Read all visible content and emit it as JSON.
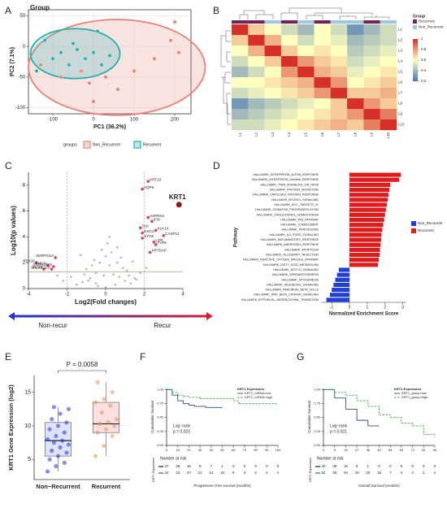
{
  "chart_data": [
    {
      "type": "scatter",
      "panel": "A",
      "title": "Group",
      "xlabel": "PC1 (36.2%)",
      "ylabel": "PC2 (7.1%)",
      "xlim": [
        -160,
        240
      ],
      "ylim": [
        -110,
        60
      ],
      "xticks": [
        -100,
        0,
        100,
        200
      ],
      "yticks": [
        -100,
        -50,
        0,
        50
      ],
      "grid": true,
      "legend_title": "groups",
      "series": [
        {
          "name": "Non_Recurrent",
          "color": "#e8837a",
          "x": [
            -30,
            -10,
            30,
            60,
            100,
            150,
            190,
            200,
            210,
            0,
            -80,
            -130
          ],
          "values": [
            -40,
            -60,
            -50,
            -70,
            -40,
            -20,
            10,
            40,
            -10,
            -90,
            -50,
            -30
          ]
        },
        {
          "name": "Recurrent",
          "color": "#20b2b2",
          "x": [
            -120,
            -100,
            -80,
            -60,
            -40,
            -20,
            0,
            20,
            40,
            -50,
            10,
            -140
          ],
          "values": [
            10,
            -20,
            -10,
            -30,
            -5,
            -20,
            -10,
            -30,
            -15,
            5,
            25,
            -40
          ]
        }
      ]
    },
    {
      "type": "heatmap",
      "panel": "B",
      "legend_title": "Group",
      "labels": [
        "L1",
        "L2",
        "L3",
        "L4",
        "L5",
        "L6",
        "L7",
        "L8",
        "L9",
        "L10"
      ],
      "matrix": [
        [
          1,
          0.7,
          0.6,
          0.5,
          0.4,
          0.6,
          0.5,
          0.3,
          0.4,
          0.5
        ],
        [
          0.7,
          1,
          0.75,
          0.6,
          0.5,
          0.6,
          0.55,
          0.4,
          0.45,
          0.5
        ],
        [
          0.6,
          0.75,
          1,
          0.7,
          0.6,
          0.65,
          0.6,
          0.45,
          0.5,
          0.55
        ],
        [
          0.5,
          0.6,
          0.7,
          1,
          0.8,
          0.7,
          0.65,
          0.5,
          0.55,
          0.6
        ],
        [
          0.4,
          0.5,
          0.6,
          0.8,
          1,
          0.75,
          0.7,
          0.55,
          0.6,
          0.65
        ],
        [
          0.6,
          0.6,
          0.65,
          0.7,
          0.75,
          1,
          0.8,
          0.6,
          0.65,
          0.7
        ],
        [
          0.5,
          0.55,
          0.6,
          0.65,
          0.7,
          0.8,
          1,
          0.7,
          0.7,
          0.75
        ],
        [
          0.3,
          0.4,
          0.45,
          0.5,
          0.55,
          0.6,
          0.7,
          1,
          0.8,
          0.7
        ],
        [
          0.4,
          0.45,
          0.5,
          0.55,
          0.6,
          0.65,
          0.7,
          0.8,
          1,
          0.85
        ],
        [
          0.5,
          0.5,
          0.55,
          0.6,
          0.65,
          0.7,
          0.75,
          0.7,
          0.85,
          1
        ]
      ],
      "column_groups": [
        "Recurrent",
        "Recurrent",
        "Non_Recurrent",
        "Recurrent",
        "Non_Recurrent",
        "Recurrent",
        "Non_Recurrent",
        "Non_Recurrent",
        "Recurrent",
        "Non_Recurrent"
      ],
      "series": [
        {
          "name": "Recurrent",
          "color": "#7b1f4e"
        },
        {
          "name": "Non_Recurrent",
          "color": "#9ecae1"
        }
      ],
      "colorscale": [
        "#4575b4",
        "#ffffbf",
        "#d73027"
      ],
      "scale_lim": [
        0.2,
        1
      ],
      "scale_ticks": [
        0.2,
        0.4,
        0.6,
        0.8,
        1
      ]
    },
    {
      "type": "volcano",
      "panel": "C",
      "xlabel": "Log2(Fold changes)",
      "ylabel": "Log10(p values)",
      "xlim": [
        -4,
        4
      ],
      "ylim": [
        0,
        9
      ],
      "xticks": [
        -4,
        -2,
        0,
        2,
        4
      ],
      "yticks": [
        0,
        2,
        4,
        6,
        8
      ],
      "vlines": [
        -2,
        2
      ],
      "hline": 1.3,
      "point_color": "#b5b5b5",
      "gene_color": "#e0405a",
      "highlight": "KRT1",
      "highlight_color": "#8b1a1a",
      "background": {
        "x": [
          -1.2,
          -0.8,
          -0.5,
          -0.3,
          0,
          0.2,
          0.4,
          0.7,
          1.0,
          1.3,
          -1.5,
          -1.0,
          -0.6,
          -0.2,
          0.1,
          0.3,
          0.6,
          0.9,
          1.2,
          1.6,
          -0.4,
          0.5,
          -0.9,
          0.8,
          -1.8,
          1.8,
          -0.1,
          0.2,
          -0.7,
          1.1,
          -2.2,
          2.1,
          -1.3,
          1.4,
          0.0,
          -0.5,
          0.6,
          -1.1,
          1.5,
          -2.5
        ],
        "values": [
          0.5,
          0.8,
          1.2,
          2.0,
          2.5,
          1.8,
          1.1,
          0.9,
          0.6,
          0.4,
          0.3,
          1.5,
          2.2,
          3.0,
          3.5,
          2.8,
          2.0,
          1.6,
          1.0,
          0.7,
          0.2,
          0.3,
          0.6,
          2.4,
          0.9,
          1.2,
          1.0,
          4.0,
          1.8,
          1.4,
          0.6,
          1.6,
          2.6,
          2.1,
          0.1,
          0.4,
          3.2,
          1.1,
          0.8,
          1.0
        ]
      },
      "genes": {
        "names": [
          "KRT10",
          "AQP5",
          "KRT1",
          "ASPRN1",
          "IFI6",
          "SLK",
          "KLK14",
          "DSG1",
          "SYCE",
          "CASP14",
          "LOR",
          "FLR5",
          "KRTDAP",
          "SERPIN1A",
          "TEX26",
          "PMCH",
          "SNORD115",
          "PGA4",
          "SNORD116"
        ],
        "x": [
          2.2,
          1.9,
          3.8,
          2.2,
          2.4,
          1.8,
          2.6,
          1.9,
          1.9,
          3.0,
          2.5,
          2.6,
          2.3,
          -2.6,
          -3.6,
          -3.0,
          -2.7,
          -3.2,
          -2.8
        ],
        "values": [
          8.3,
          7.7,
          6.5,
          5.5,
          5.2,
          4.7,
          4.5,
          4.3,
          3.9,
          4.1,
          3.6,
          3.4,
          2.8,
          2.4,
          2.0,
          1.8,
          1.7,
          1.5,
          1.5
        ]
      },
      "arrow_labels": [
        "Non-recur",
        "Recur"
      ],
      "arrow_colors": [
        "#2233cc",
        "#cc2233"
      ]
    },
    {
      "type": "bar",
      "panel": "D",
      "orientation": "horizontal",
      "xlabel": "Normalized Enrichment Score",
      "ylabel": "Pathway",
      "xlim": [
        -1.6,
        3.2
      ],
      "xticks": [
        -1,
        0,
        1,
        2,
        3
      ],
      "categories": [
        "HALLMARK_INTERFERON_ALPHA_RESPONSE",
        "HALLMARK_INTERFERON_GAMMA_RESPONSE",
        "HALLMARK_TNFA_SIGNALING_VIA_NFKB",
        "HALLMARK_PROTEIN_SECRETION",
        "HALLMARK_UNFOLDED_PROTEIN_RESPONSE",
        "HALLMARK_MTORC1_SIGNALING",
        "HALLMARK_MYC_TARGETS_V1",
        "HALLMARK_OXIDATIVE_PHOSPHORYLATION",
        "HALLMARK_CHOLESTEROL_HOMEOSTASIS",
        "HALLMARK_P53_PATHWAY",
        "HALLMARK_COMPLEMENT",
        "HALLMARK_PEROXISOME",
        "HALLMARK_IL2_STAT5_SIGNALING",
        "HALLMARK_INFLAMMATORY_RESPONSE",
        "HALLMARK_ANDROGEN_RESPONSE",
        "HALLMARK_APOPTOSIS",
        "HALLMARK_ALLOGRAFT_REJECTION",
        "HALLMARK_REACTIVE_OXYGEN_SPECIES_PATHWAY",
        "HALLMARK_FATTY_ACID_METABOLISM",
        "HALLMARK_NOTCH_SIGNALING",
        "HALLMARK_SPERMATOGENESIS",
        "HALLMARK_MYOGENESIS",
        "HALLMARK_HEDGEHOG_SIGNALING",
        "HALLMARK_PANCREAS_BETA_CELLS",
        "HALLMARK_WNT_BETA_CATENIN_SIGNALING",
        "HALLMARK_EPITHELIAL_MESENCHYMAL_TRANSITION"
      ],
      "series": [
        {
          "name": "Non_Recurrent",
          "color": "#1f3fd6",
          "values": [
            null,
            null,
            null,
            null,
            null,
            null,
            null,
            null,
            null,
            null,
            null,
            null,
            null,
            null,
            null,
            null,
            null,
            null,
            null,
            -0.6,
            -0.7,
            -0.8,
            -0.9,
            -1.0,
            -1.1,
            -1.3
          ]
        },
        {
          "name": "Recurrent",
          "color": "#e01b1b",
          "values": [
            2.9,
            2.8,
            2.3,
            2.25,
            2.2,
            2.15,
            2.1,
            2.05,
            2.0,
            1.95,
            1.9,
            1.85,
            1.8,
            1.78,
            1.75,
            1.72,
            1.7,
            1.65,
            1.6,
            null,
            null,
            null,
            null,
            null,
            null,
            null
          ]
        }
      ]
    },
    {
      "type": "box",
      "panel": "E",
      "ylabel": "KRT1 Gene Expression (log2)",
      "annotation": "P = 0.0058",
      "ylim": [
        2,
        17.5
      ],
      "yticks": [
        5,
        10,
        15
      ],
      "categories": [
        "Non−Recurrent",
        "Recurrent"
      ],
      "boxes": [
        {
          "min": 3.2,
          "q1": 5.5,
          "median": 7.8,
          "q3": 10.5,
          "max": 12.8,
          "color": "#2233dd",
          "fill": "#dfe3f7",
          "points": [
            3.2,
            4.0,
            4.5,
            5.0,
            5.5,
            6.0,
            6.3,
            6.8,
            7.2,
            7.5,
            7.8,
            8.0,
            8.5,
            9.0,
            9.5,
            10.0,
            10.5,
            11.0,
            11.8,
            12.5,
            12.8
          ]
        },
        {
          "min": 5.5,
          "q1": 9.0,
          "median": 10.3,
          "q3": 13.5,
          "max": 16.5,
          "color": "#e8905a",
          "fill": "#fbe0e0",
          "points": [
            5.5,
            7.0,
            8.5,
            9.0,
            9.5,
            10.0,
            10.3,
            10.6,
            11.0,
            12.0,
            13.0,
            13.5,
            14.0,
            15.0,
            16.5
          ]
        }
      ]
    },
    {
      "type": "survival",
      "panel": "F",
      "xlabel": "Progression−free survival (months)",
      "ylabel": "Cumulative Survival",
      "legend_title": "KRT1 Expression",
      "annotation": [
        "Log−rank",
        "p = 0.023"
      ],
      "xlim": [
        0,
        100
      ],
      "ylim": [
        0,
        1.02
      ],
      "xticks": [
        0,
        10,
        20,
        30,
        40,
        50,
        60,
        70,
        80,
        90,
        100
      ],
      "yticks": [
        {
          "value": 0,
          "label": "0.00"
        },
        {
          "value": 0.25,
          "label": "0.25"
        },
        {
          "value": 0.5,
          "label": "0.50"
        },
        {
          "value": 0.75,
          "label": "0.75"
        },
        {
          "value": 1,
          "label": "1.00"
        }
      ],
      "series": [
        {
          "name": "KRT1_mRNA=low",
          "color": "#2a4a8a",
          "dash": false,
          "x": [
            0,
            5,
            10,
            15,
            20,
            25,
            35,
            50
          ],
          "values": [
            1,
            0.9,
            0.8,
            0.75,
            0.72,
            0.7,
            0.68,
            0.68
          ]
        },
        {
          "name": "KRT1_mRNA=high",
          "color": "#3aa64a",
          "dash": true,
          "x": [
            0,
            5,
            10,
            15,
            20,
            30,
            60,
            65,
            100
          ],
          "values": [
            1,
            0.95,
            0.9,
            0.88,
            0.86,
            0.84,
            0.8,
            0.75,
            0.75
          ]
        }
      ],
      "risk_title": "Number at risk",
      "risk_ylabel": "KRT1 Expression",
      "risk_table": [
        [
          37,
          28,
          16,
          8,
          7,
          1,
          0,
          0,
          0,
          0,
          0
        ],
        [
          42,
          32,
          27,
          21,
          14,
          10,
          5,
          3,
          2,
          2,
          1
        ]
      ]
    },
    {
      "type": "survival",
      "panel": "G",
      "xlabel": "Overall Survival (months)",
      "ylabel": "Cumulative Survival",
      "legend_title": "KRT1 Expression",
      "annotation": [
        "Log−rank",
        "p = 0.021"
      ],
      "xlim": [
        0,
        90
      ],
      "ylim": [
        0,
        1.02
      ],
      "xticks": [
        0,
        9,
        18,
        27,
        36,
        45,
        54,
        63,
        72,
        81,
        90
      ],
      "yticks": [
        {
          "value": 0,
          "label": "0.00"
        },
        {
          "value": 0.25,
          "label": "0.25"
        },
        {
          "value": 0.5,
          "label": "0.50"
        },
        {
          "value": 0.75,
          "label": "0.75"
        },
        {
          "value": 1,
          "label": "1.00"
        }
      ],
      "series": [
        {
          "name": "KRT1_group=low",
          "color": "#2a4a8a",
          "dash": false,
          "x": [
            0,
            9,
            18,
            27,
            36,
            45
          ],
          "values": [
            1,
            0.85,
            0.65,
            0.45,
            0.35,
            0.35
          ]
        },
        {
          "name": "KRT1_group=high",
          "color": "#3aa64a",
          "dash": true,
          "x": [
            0,
            9,
            18,
            27,
            36,
            45,
            54,
            63,
            72,
            81,
            90
          ],
          "values": [
            1,
            0.95,
            0.9,
            0.8,
            0.7,
            0.55,
            0.5,
            0.4,
            0.35,
            0.2,
            0.15
          ]
        }
      ],
      "risk_title": "Number at risk",
      "risk_ylabel": "KRT1 Expression",
      "risk_table": [
        [
          40,
          35,
          16,
          8,
          1,
          0,
          0,
          0,
          0,
          0,
          0
        ],
        [
          52,
          45,
          34,
          28,
          20,
          15,
          7,
          4,
          2,
          2,
          1
        ]
      ]
    }
  ]
}
